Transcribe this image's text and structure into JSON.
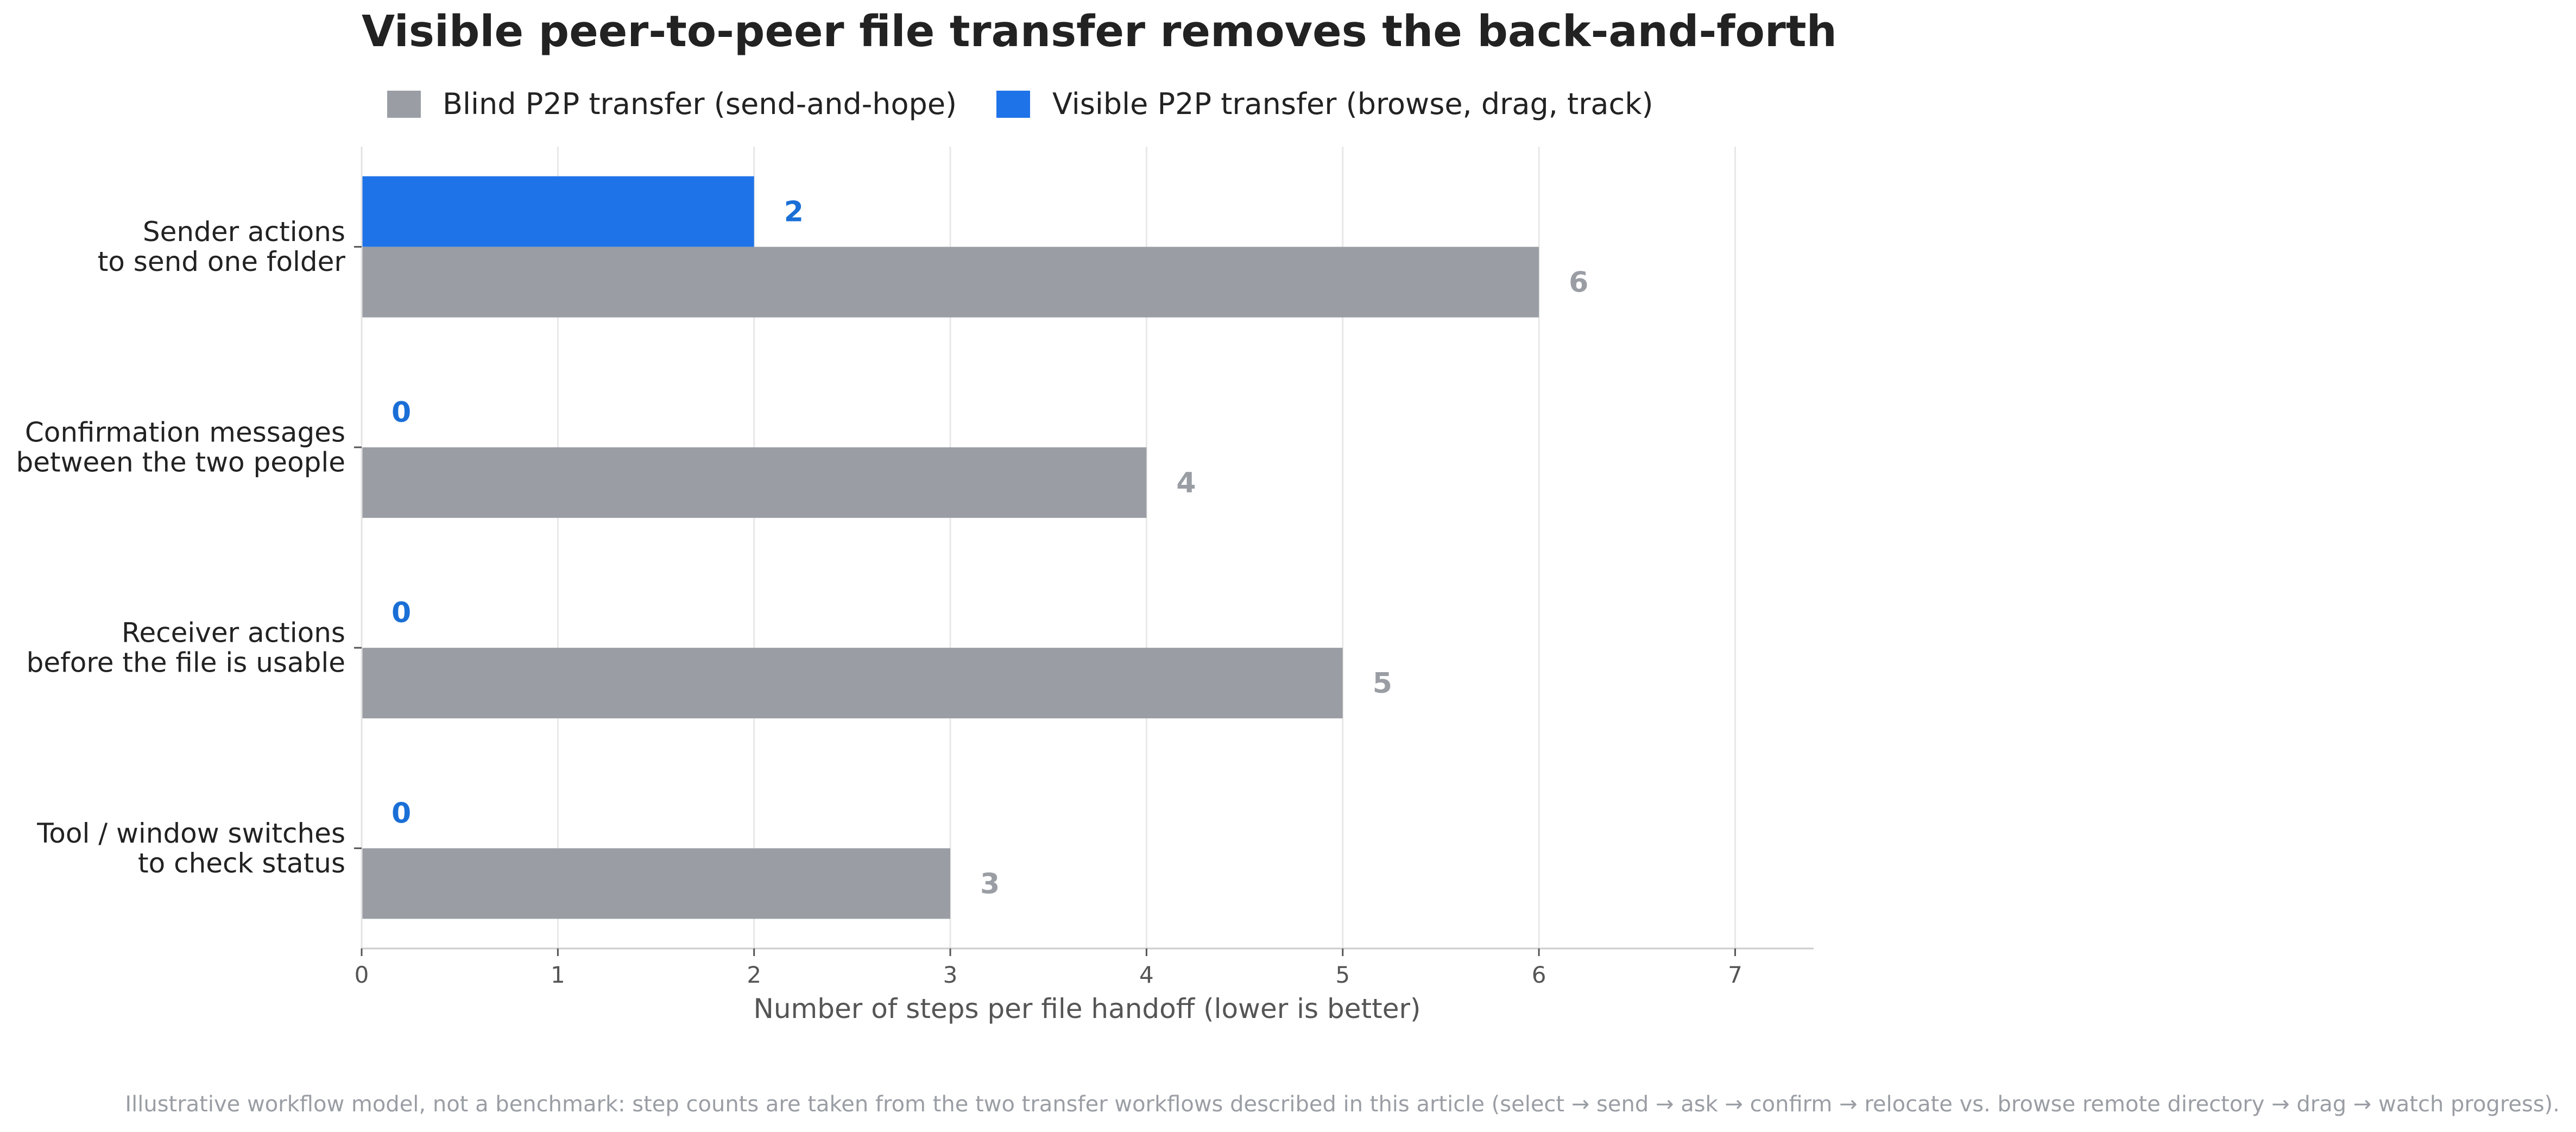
{
  "chart_data": {
    "type": "bar",
    "orientation": "horizontal",
    "title": "Visible peer-to-peer file transfer removes the back-and-forth",
    "categories": [
      [
        "Sender actions",
        "to send one folder"
      ],
      [
        "Confirmation messages",
        "between the two people"
      ],
      [
        "Receiver actions",
        "before the file is usable"
      ],
      [
        "Tool / window switches",
        "to check status"
      ]
    ],
    "series": [
      {
        "name": "Blind P2P transfer (send-and-hope)",
        "color": "#9a9ea4",
        "values": [
          6,
          4,
          5,
          3
        ]
      },
      {
        "name": "Visible P2P transfer (browse, drag, track)",
        "color": "#1f73e8",
        "label_color": "#1a6fd6",
        "values": [
          2,
          0,
          0,
          0
        ]
      }
    ],
    "xlabel": "Number of steps per file handoff (lower is better)",
    "ylabel": "",
    "xlim": [
      0,
      7.4
    ],
    "xticks": [
      0,
      1,
      2,
      3,
      4,
      5,
      6,
      7
    ],
    "grid": "vertical",
    "legend": "top-left",
    "footnote": "Illustrative workflow model, not a benchmark: step counts are taken from the two transfer workflows described in this article (select → send → ask → confirm → relocate vs. browse remote directory → drag → watch progress)."
  }
}
